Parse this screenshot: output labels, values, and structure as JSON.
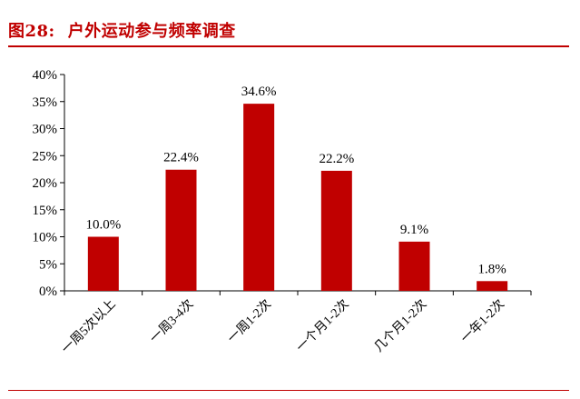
{
  "header": {
    "figure_number": "图28:",
    "title": "户外运动参与频率调查"
  },
  "colors": {
    "accent": "#c00000",
    "bar": "#c00000"
  },
  "chart_data": {
    "type": "bar",
    "title": "",
    "xlabel": "",
    "ylabel": "",
    "categories": [
      "一周5次以上",
      "一周3-4次",
      "一周1-2次",
      "一个月1-2次",
      "几个月1-2次",
      "一年1-2次"
    ],
    "values": [
      10.0,
      22.4,
      34.6,
      22.2,
      9.1,
      1.8
    ],
    "data_labels": [
      "10.0%",
      "22.4%",
      "34.6%",
      "22.2%",
      "9.1%",
      "1.8%"
    ],
    "ylim": [
      0,
      40
    ],
    "yticks": [
      0,
      5,
      10,
      15,
      20,
      25,
      30,
      35,
      40
    ],
    "ytick_labels": [
      "0%",
      "5%",
      "10%",
      "15%",
      "20%",
      "25%",
      "30%",
      "35%",
      "40%"
    ],
    "grid": false,
    "legend": "none"
  }
}
